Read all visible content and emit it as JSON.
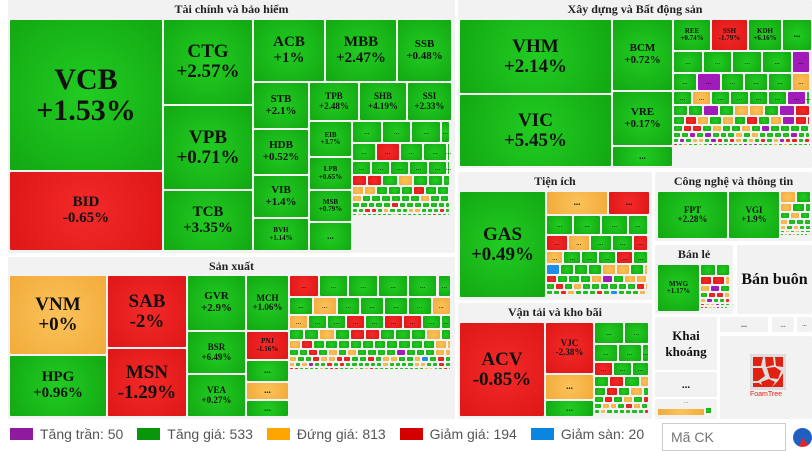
{
  "sections": {
    "finance": "Tài chính và bảo hiểm",
    "realestate": "Xây dựng và Bất động sản",
    "manufacturing": "Sản xuất",
    "utilities": "Tiện ích",
    "transport": "Vận tải và kho bãi",
    "tech": "Công nghệ và thông tin",
    "retail": "Bán lẻ",
    "wholesale": "Bán buôn",
    "mining": "Khai khoáng"
  },
  "tiles": {
    "VCB": {
      "n": "VCB",
      "c": "+1.53%"
    },
    "BID": {
      "n": "BID",
      "c": "-0.65%"
    },
    "CTG": {
      "n": "CTG",
      "c": "+2.57%"
    },
    "VPB": {
      "n": "VPB",
      "c": "+0.71%"
    },
    "TCB": {
      "n": "TCB",
      "c": "+3.35%"
    },
    "ACB": {
      "n": "ACB",
      "c": "+1%"
    },
    "MBB": {
      "n": "MBB",
      "c": "+2.47%"
    },
    "SSB": {
      "n": "SSB",
      "c": "+0.48%"
    },
    "STB": {
      "n": "STB",
      "c": "+2.1%"
    },
    "TPB": {
      "n": "TPB",
      "c": "+2.48%"
    },
    "SHB": {
      "n": "SHB",
      "c": "+4.19%"
    },
    "SSI": {
      "n": "SSI",
      "c": "+2.33%"
    },
    "HDB": {
      "n": "HDB",
      "c": "+0.52%"
    },
    "VIB": {
      "n": "VIB",
      "c": "+1.4%"
    },
    "BVH": {
      "n": "BVH",
      "c": "+1.14%"
    },
    "EIB": {
      "n": "EIB",
      "c": "+3.7%"
    },
    "LPB": {
      "n": "LPB",
      "c": "+0.65%"
    },
    "MSB": {
      "n": "MSB",
      "c": "+0.79%"
    },
    "VHM": {
      "n": "VHM",
      "c": "+2.14%"
    },
    "VIC": {
      "n": "VIC",
      "c": "+5.45%"
    },
    "BCM": {
      "n": "BCM",
      "c": "+0.72%"
    },
    "VRE": {
      "n": "VRE",
      "c": "+0.17%"
    },
    "REE": {
      "n": "REE",
      "c": "+0.74%"
    },
    "SSH": {
      "n": "SSH",
      "c": "-1.79%"
    },
    "KDH": {
      "n": "KDH",
      "c": "+6.16%"
    },
    "VNM": {
      "n": "VNM",
      "c": "+0%"
    },
    "HPG": {
      "n": "HPG",
      "c": "+0.96%"
    },
    "SAB": {
      "n": "SAB",
      "c": "-2%"
    },
    "MSN": {
      "n": "MSN",
      "c": "-1.29%"
    },
    "GVR": {
      "n": "GVR",
      "c": "+2.9%"
    },
    "BSR": {
      "n": "BSR",
      "c": "+6.49%"
    },
    "VEA": {
      "n": "VEA",
      "c": "+0.27%"
    },
    "MCH": {
      "n": "MCH",
      "c": "+1.06%"
    },
    "PNJ": {
      "n": "PNJ",
      "c": "-1.16%"
    },
    "GAS": {
      "n": "GAS",
      "c": "+0.49%"
    },
    "ACV": {
      "n": "ACV",
      "c": "-0.85%"
    },
    "VJC": {
      "n": "VJC",
      "c": "-2.38%"
    },
    "FPT": {
      "n": "FPT",
      "c": "+2.28%"
    },
    "VGI": {
      "n": "VGI",
      "c": "+1.9%"
    },
    "MWG": {
      "n": "MWG",
      "c": "+1.17%"
    }
  },
  "ellipsis": "...",
  "tile_states": {
    "finance_rest": "gggggrgggggggggrrgogggoogggrggoggggggogg",
    "realestate_rest": "ggggpgpgggogoggggpgggpgoogprgrogogrgoprrgrrgoggogpgg",
    "manufacturing_rest": "rggggggoggggooggrgrrggggogrrgggogorggggggggggooggrgogoggggpgggoooggroorrggrgooggobgrgogopggrg",
    "utilities_rest": "ggggroggrogggrgbgggoogorgggopgoogrgogg",
    "transport_rest": "gggggrgggrgogrgoggrgogrgoogroggog",
    "tech_rest": "ogoggg",
    "retail_rest": "ggrroop"
  },
  "legend": [
    {
      "label": "Tăng trần: 50",
      "color": "#8e1b9e"
    },
    {
      "label": "Tăng giá: 533",
      "color": "#0a960a"
    },
    {
      "label": "Đứng giá: 813",
      "color": "#ffa500"
    },
    {
      "label": "Giảm giá: 194",
      "color": "#d40000"
    },
    {
      "label": "Giảm sàn: 20",
      "color": "#0b86e0"
    }
  ],
  "search": {
    "placeholder": "Mã CK"
  },
  "logo": "FoamTree"
}
